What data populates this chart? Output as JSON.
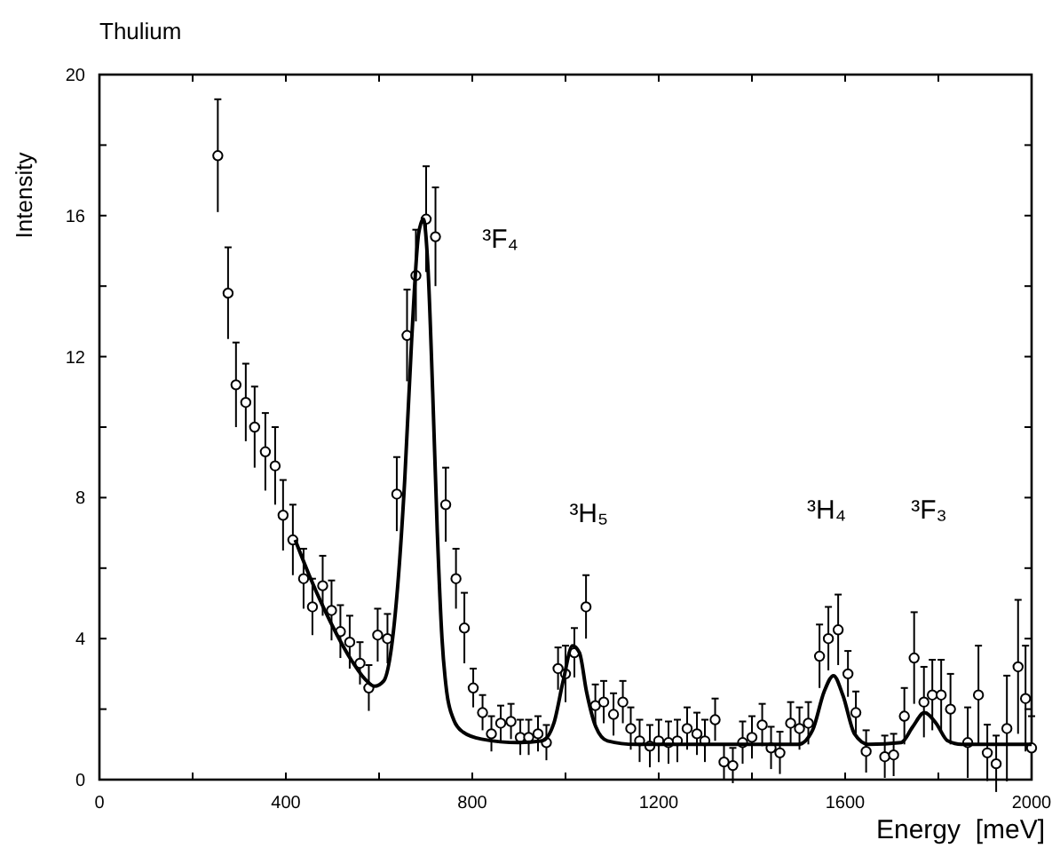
{
  "chart_data": {
    "type": "scatter",
    "title": "Thulium",
    "xlabel": "Energy  [meV]",
    "ylabel": "Intensity",
    "xlim": [
      0,
      2000
    ],
    "ylim": [
      0,
      20
    ],
    "xticks": [
      0,
      {
        "value": 200,
        "label": null
      },
      400,
      {
        "value": 600,
        "label": null
      },
      800,
      {
        "value": 1000,
        "label": null
      },
      1200,
      {
        "value": 1400,
        "label": null
      },
      1600,
      {
        "value": 1800,
        "label": null
      },
      2000
    ],
    "yticks": [
      0,
      {
        "value": 2,
        "label": null
      },
      4,
      {
        "value": 6,
        "label": null
      },
      8,
      {
        "value": 10,
        "label": null
      },
      12,
      {
        "value": 14,
        "label": null
      },
      16,
      {
        "value": 18,
        "label": null
      },
      20
    ],
    "grid": false,
    "marker": "circle",
    "annotations": [
      "³F₄",
      "³H₅",
      "³H₄",
      "³F₃"
    ],
    "series": [
      {
        "color": "#000000",
        "x": [
          254,
          276,
          293,
          314,
          333,
          356,
          377,
          394,
          415,
          438,
          457,
          479,
          498,
          517,
          537,
          559,
          578,
          597,
          618,
          638,
          660,
          679,
          701,
          721,
          743,
          765,
          783,
          802,
          822,
          841,
          861,
          883,
          903,
          921,
          941,
          959,
          984,
          1000,
          1019,
          1044,
          1064,
          1082,
          1103,
          1123,
          1140,
          1159,
          1181,
          1200,
          1221,
          1240,
          1261,
          1282,
          1299,
          1321,
          1340,
          1359,
          1380,
          1400,
          1422,
          1441,
          1460,
          1483,
          1502,
          1521,
          1545,
          1564,
          1585,
          1606,
          1623,
          1645,
          1685,
          1704,
          1727,
          1748,
          1769,
          1787,
          1806,
          1826,
          1863,
          1886,
          1905,
          1924,
          1947,
          1971,
          1987,
          2000
        ],
        "values": [
          17.7,
          13.8,
          11.2,
          10.7,
          10.0,
          9.3,
          8.9,
          7.5,
          6.8,
          5.7,
          4.9,
          5.5,
          4.8,
          4.2,
          3.9,
          3.3,
          2.6,
          4.1,
          4.0,
          8.1,
          12.6,
          14.3,
          15.9,
          15.4,
          7.8,
          5.7,
          4.3,
          2.6,
          1.9,
          1.3,
          1.6,
          1.65,
          1.2,
          1.2,
          1.3,
          1.05,
          3.15,
          3.0,
          3.6,
          4.9,
          2.1,
          2.2,
          1.85,
          2.2,
          1.45,
          1.1,
          0.95,
          1.1,
          1.05,
          1.1,
          1.45,
          1.3,
          1.1,
          1.7,
          0.5,
          0.4,
          1.05,
          1.2,
          1.55,
          0.9,
          0.76,
          1.6,
          1.45,
          1.6,
          3.5,
          4.0,
          4.25,
          3.0,
          1.9,
          0.8,
          0.65,
          0.7,
          1.8,
          3.45,
          2.2,
          2.4,
          2.4,
          2.0,
          1.05,
          2.4,
          0.76,
          0.45,
          1.45,
          3.2,
          2.3,
          0.9
        ],
        "errors": [
          1.6,
          1.3,
          1.2,
          1.1,
          1.15,
          1.1,
          1.1,
          1.0,
          1.0,
          0.85,
          0.8,
          0.85,
          0.85,
          0.75,
          0.75,
          0.6,
          0.65,
          0.75,
          0.7,
          1.05,
          1.3,
          1.3,
          1.5,
          1.4,
          1.05,
          0.85,
          1.0,
          0.55,
          0.5,
          0.5,
          0.5,
          0.5,
          0.5,
          0.5,
          0.5,
          0.5,
          0.6,
          0.8,
          0.7,
          0.9,
          0.6,
          0.6,
          0.6,
          0.6,
          0.6,
          0.6,
          0.6,
          0.6,
          0.6,
          0.6,
          0.6,
          0.6,
          0.6,
          0.6,
          0.5,
          0.5,
          0.6,
          0.6,
          0.6,
          0.6,
          0.6,
          0.6,
          0.6,
          0.6,
          0.9,
          0.9,
          1.0,
          0.65,
          0.6,
          0.6,
          0.6,
          0.6,
          0.8,
          1.3,
          1.0,
          1.0,
          1.0,
          1.0,
          1.0,
          1.4,
          0.8,
          0.8,
          1.5,
          1.9,
          1.5,
          0.9
        ]
      },
      {
        "type": "line",
        "color": "#000000",
        "line_style": "solid",
        "marker": "none",
        "x": [
          420,
          450,
          480,
          510,
          540,
          570,
          590,
          610,
          625,
          640,
          655,
          670,
          685,
          695,
          705,
          715,
          725,
          735,
          745,
          760,
          780,
          820,
          900,
          950,
          975,
          995,
          1015,
          1030,
          1045,
          1065,
          1090,
          1150,
          1500,
          1530,
          1555,
          1575,
          1595,
          1620,
          1650,
          1720,
          1745,
          1770,
          1795,
          1820,
          1850,
          2000
        ],
        "values": [
          6.8,
          5.8,
          4.9,
          4.1,
          3.4,
          2.85,
          2.65,
          2.8,
          3.6,
          5.5,
          8.5,
          12.5,
          15.5,
          15.9,
          14.5,
          11,
          7,
          4,
          2.5,
          1.7,
          1.35,
          1.15,
          1.05,
          1.1,
          1.6,
          2.8,
          3.8,
          3.6,
          2.5,
          1.5,
          1.1,
          1.0,
          1.0,
          1.4,
          2.5,
          2.95,
          2.4,
          1.3,
          1.0,
          1.05,
          1.5,
          1.9,
          1.6,
          1.1,
          1.0,
          1.0
        ]
      }
    ]
  }
}
